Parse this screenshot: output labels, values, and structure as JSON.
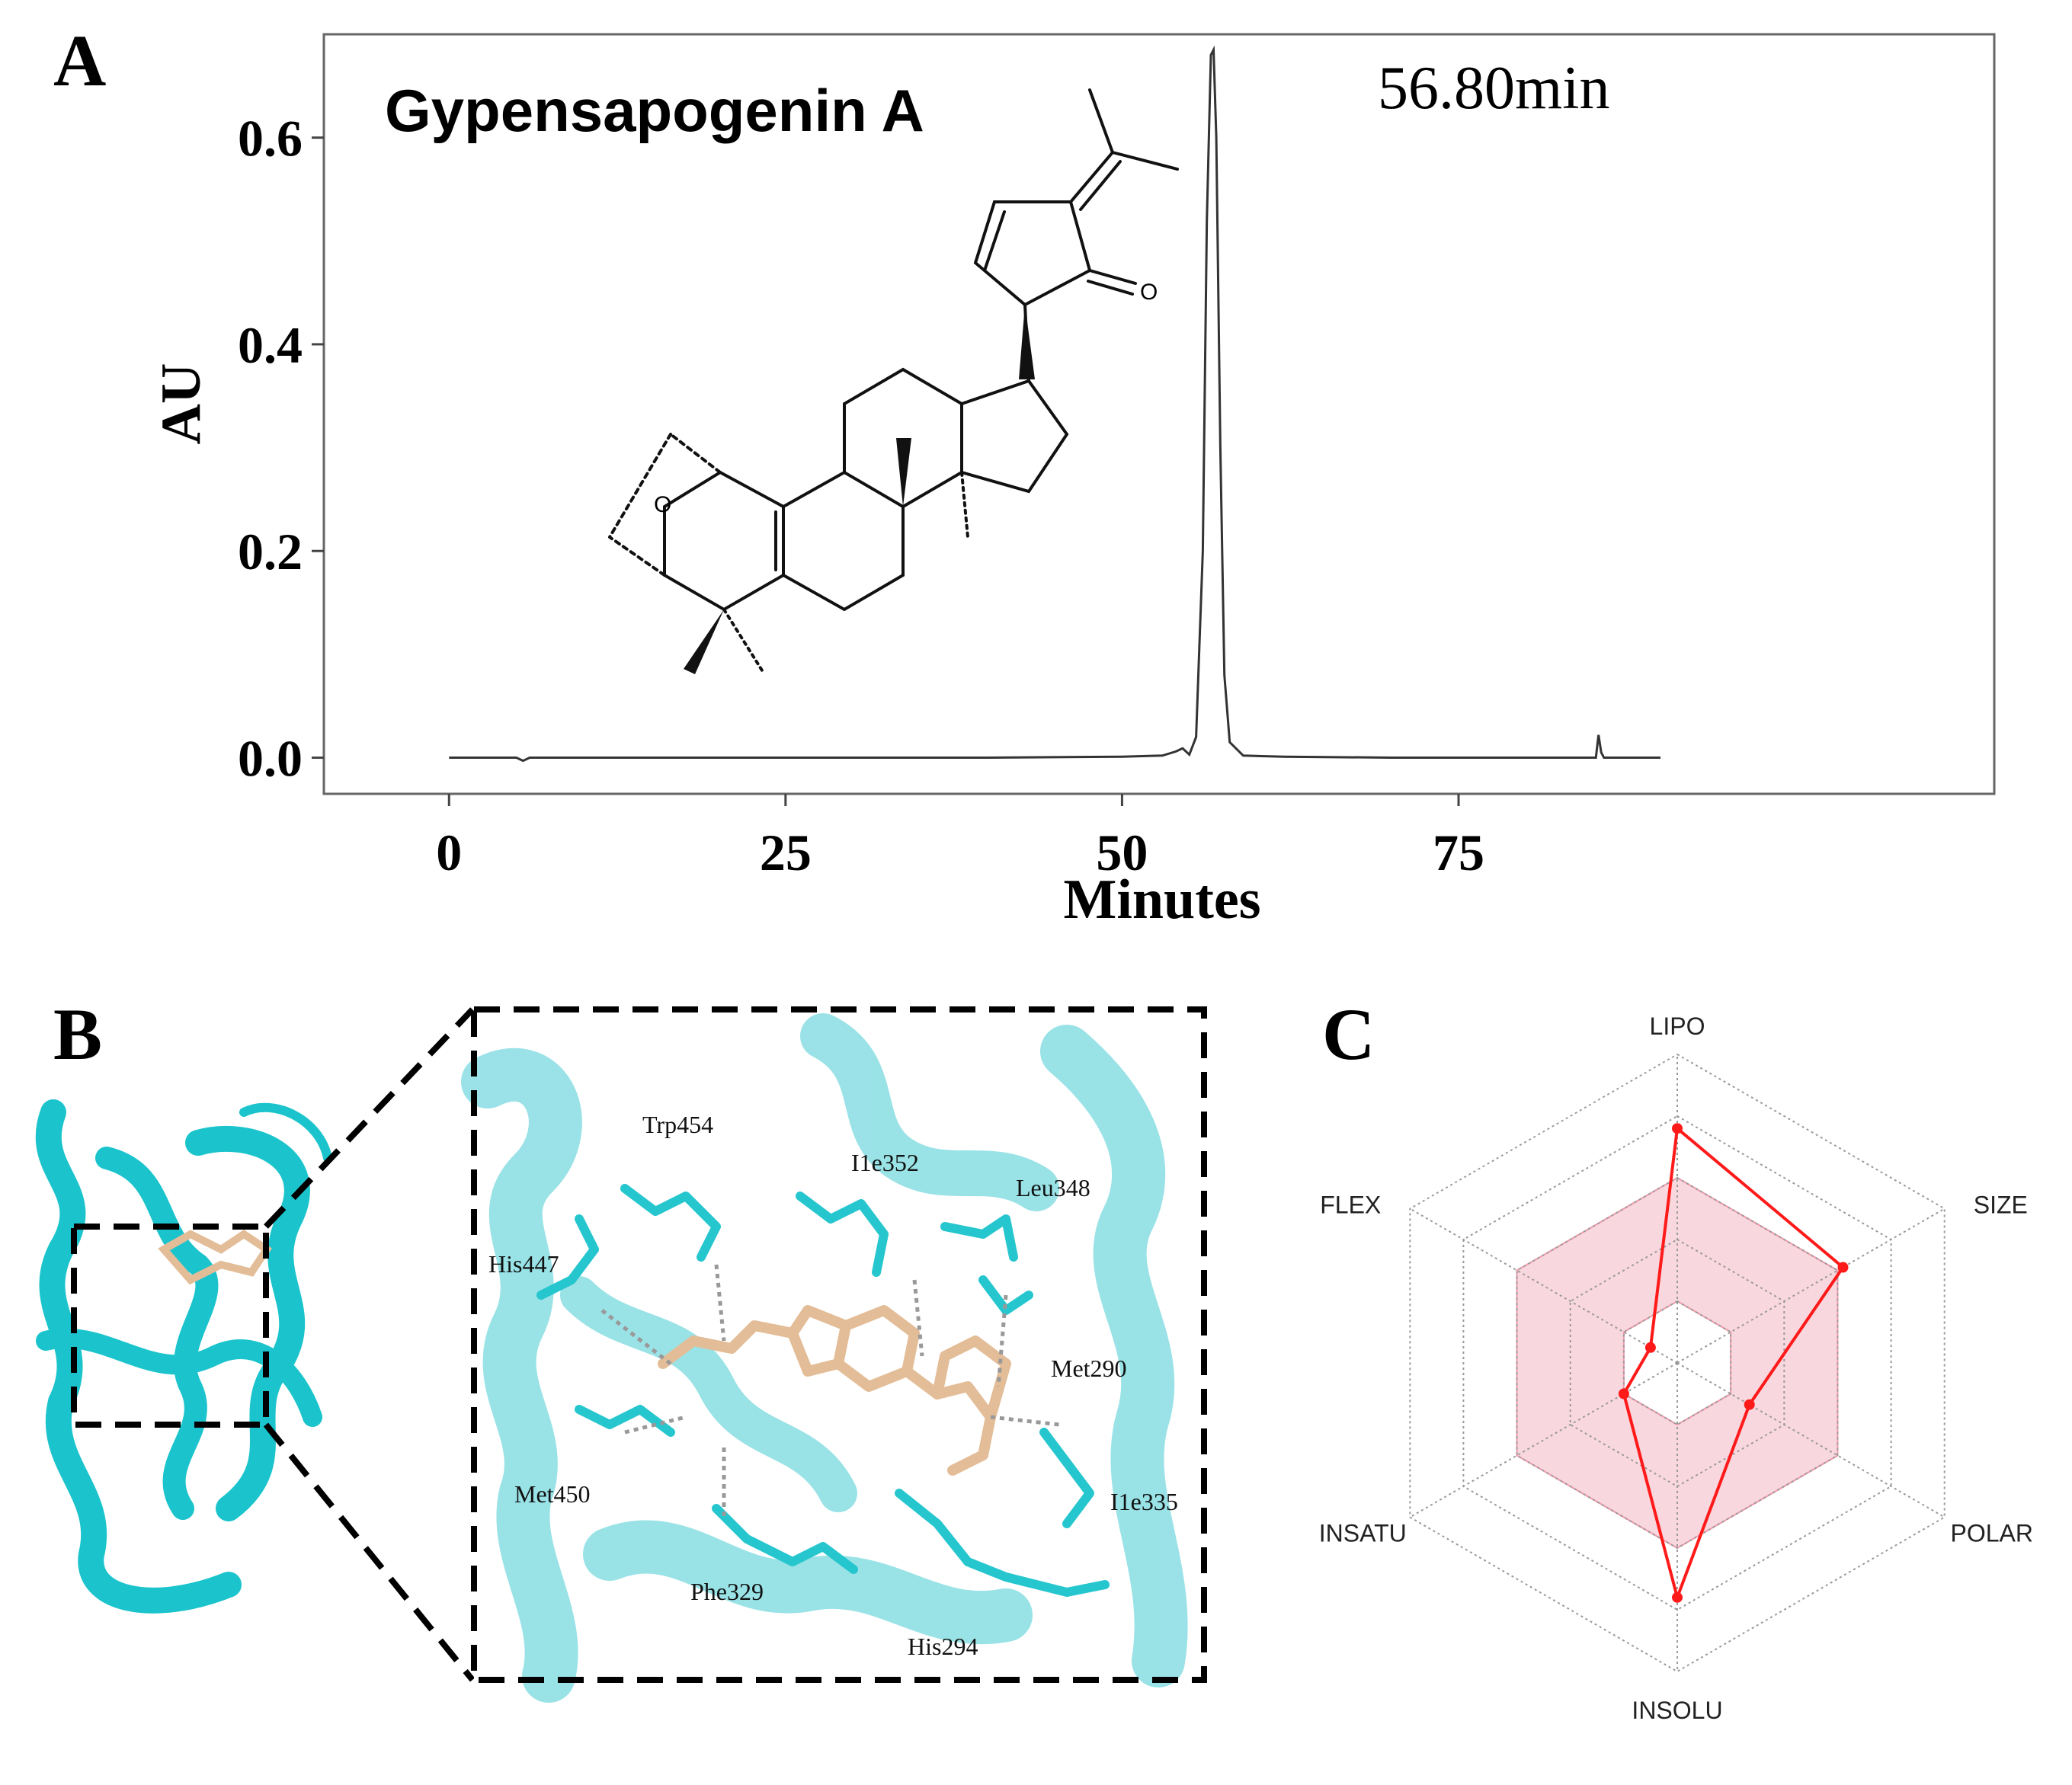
{
  "panels": {
    "a": {
      "label": "A"
    },
    "b": {
      "label": "B"
    },
    "c": {
      "label": "C"
    }
  },
  "chromatogram": {
    "compound_name": "Gypensapogenin A",
    "peak_label": "56.80min",
    "structure_atoms": {
      "ring_oxygen": "O",
      "ketone_oxygen": "O"
    }
  },
  "docking": {
    "residues": [
      {
        "id": "trp454",
        "label": "Trp454"
      },
      {
        "id": "ile352",
        "label": "I1e352"
      },
      {
        "id": "leu348",
        "label": "Leu348"
      },
      {
        "id": "his447",
        "label": "His447"
      },
      {
        "id": "met290",
        "label": "Met290"
      },
      {
        "id": "met450",
        "label": "Met450"
      },
      {
        "id": "ile335",
        "label": "I1e335"
      },
      {
        "id": "phe329",
        "label": "Phe329"
      },
      {
        "id": "his294",
        "label": "His294"
      }
    ]
  },
  "chart_data": [
    {
      "type": "line",
      "title": "Gypensapogenin A",
      "xlabel": "Minutes",
      "ylabel": "AU",
      "xlim": [
        -9.3,
        114.8
      ],
      "ylim": [
        -0.035,
        0.7
      ],
      "xticks": [
        0,
        25,
        50,
        75
      ],
      "xtick_labels": [
        "0",
        "25",
        "50",
        "75"
      ],
      "yticks": [
        0.0,
        0.2,
        0.4,
        0.6
      ],
      "ytick_labels": [
        "0.0",
        "0.2",
        "0.4",
        "0.6"
      ],
      "series": [
        {
          "name": "Gypensapogenin A",
          "color": "#333333",
          "x": [
            0,
            5,
            5.5,
            6,
            10,
            20,
            30,
            40,
            50,
            53,
            54,
            54.5,
            55,
            55.5,
            56,
            56.3,
            56.6,
            56.8,
            57.0,
            57.3,
            57.6,
            58,
            59,
            62,
            70,
            80,
            85.2,
            85.4,
            85.6,
            85.8,
            86.2,
            90
          ],
          "y": [
            0.0,
            0.0,
            -0.003,
            0.0,
            0.0,
            0.0,
            0.0,
            0.0,
            0.001,
            0.002,
            0.006,
            0.009,
            0.003,
            0.02,
            0.2,
            0.52,
            0.68,
            0.685,
            0.6,
            0.3,
            0.08,
            0.015,
            0.002,
            0.001,
            0.0,
            0.0,
            0.0,
            0.022,
            0.005,
            0.0,
            0.0,
            0.0
          ]
        }
      ],
      "annotations": [
        "56.80min"
      ],
      "grid": false
    },
    {
      "type": "radar",
      "title": "",
      "axes": [
        "LIPO",
        "SIZE",
        "POLAR",
        "INSOLU",
        "INSATU",
        "FLEX"
      ],
      "range": [
        0,
        1
      ],
      "rings": [
        0.2,
        0.4,
        0.6,
        0.8,
        1.0
      ],
      "optimal_range": {
        "min": 0.2,
        "max": 0.6,
        "color": "#f6c6d0"
      },
      "series": [
        {
          "name": "Gypensapogenin A",
          "color": "#ff1a1a",
          "values": [
            0.76,
            0.62,
            0.27,
            0.76,
            0.2,
            0.1
          ]
        }
      ]
    }
  ]
}
